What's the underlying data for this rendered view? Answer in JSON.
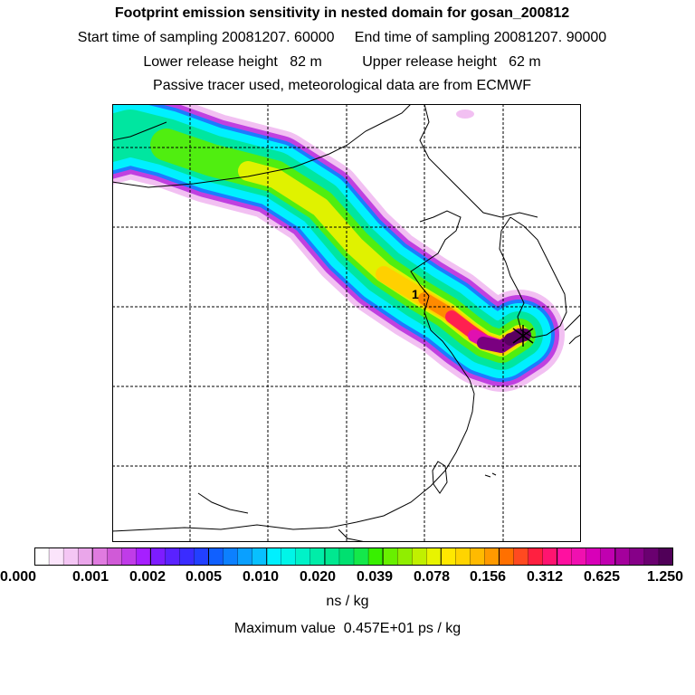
{
  "header": {
    "title": "Footprint emission sensitivity in nested domain for gosan_200812",
    "sampling_line": "Start time of sampling 20081207. 60000     End time of sampling 20081207. 90000",
    "release_line": "Lower release height   82 m          Upper release height   62 m",
    "tracer_line": "Passive tracer used, meteorological data are from ECMWF"
  },
  "map": {
    "site_marker_label": "1",
    "receptor": "gosan"
  },
  "colorbar": {
    "tick_labels": [
      "0.000",
      "0.001",
      "0.002",
      "0.005",
      "0.010",
      "0.020",
      "0.039",
      "0.078",
      "0.156",
      "0.312",
      "0.625",
      "1.250"
    ],
    "colors": [
      "#ffffff",
      "#fbe4fb",
      "#f4c6f4",
      "#eaa6ea",
      "#e07be0",
      "#d05ad7",
      "#c03ce8",
      "#a61fff",
      "#7d1cff",
      "#5a22ff",
      "#3a2cff",
      "#2240ff",
      "#1060ff",
      "#0c80ff",
      "#0aa0ff",
      "#08c0ff",
      "#00f0ff",
      "#00f5e8",
      "#00f2c8",
      "#00eda8",
      "#00e890",
      "#00e070",
      "#14e84a",
      "#38f000",
      "#68f000",
      "#90ee00",
      "#c0f000",
      "#e8f400",
      "#ffe800",
      "#ffd400",
      "#ffba00",
      "#ff9a00",
      "#ff7000",
      "#ff4a20",
      "#ff2040",
      "#ff1470",
      "#ff10a0",
      "#f010b0",
      "#d800b8",
      "#c000b0",
      "#a4009c",
      "#860088",
      "#6a0070",
      "#500058"
    ],
    "unit": "ns / kg"
  },
  "footer": {
    "max_value": "Maximum value  0.457E+01 ps / kg"
  }
}
